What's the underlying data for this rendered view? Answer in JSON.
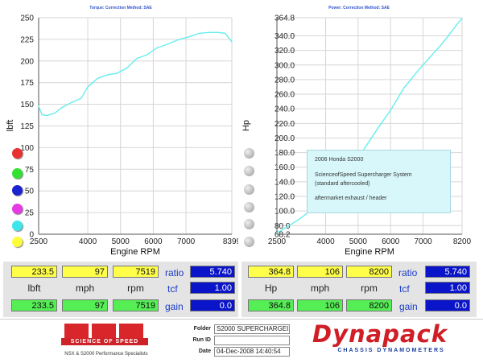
{
  "torque_chart": {
    "title": "Torque:     Correction Method: SAE",
    "ylabel": "lbft",
    "xlabel": "Engine RPM",
    "y_ticks": [
      "250",
      "225",
      "200",
      "175",
      "150",
      "125",
      "100",
      "75",
      "50",
      "25",
      "0"
    ],
    "x_ticks": [
      "2500",
      "4000",
      "5000",
      "6000",
      "7000",
      "8399"
    ]
  },
  "power_chart": {
    "title": "Power:     Correction Method: SAE",
    "ylabel": "Hp",
    "xlabel": "Engine RPM",
    "y_ticks": [
      "364.8",
      "340.0",
      "320.0",
      "300.0",
      "280.0",
      "260.0",
      "240.0",
      "220.0",
      "200.0",
      "180.0",
      "160.0",
      "140.0",
      "120.0",
      "100.0",
      "80.0",
      "68.2"
    ],
    "x_ticks": [
      "2500",
      "4000",
      "5000",
      "6000",
      "7000",
      "8200"
    ]
  },
  "chart_data": [
    {
      "type": "line",
      "title": "Torque:     Correction Method: SAE",
      "xlabel": "Engine RPM",
      "ylabel": "lbft",
      "xlim": [
        2500,
        8399
      ],
      "ylim": [
        0,
        250
      ],
      "grid": true,
      "series": [
        {
          "color": "#66eeee",
          "x": [
            2500,
            2600,
            2750,
            3000,
            3200,
            3500,
            3800,
            4000,
            4300,
            4600,
            4900,
            5200,
            5500,
            5800,
            6100,
            6400,
            6800,
            7100,
            7400,
            7700,
            8000,
            8200,
            8399
          ],
          "y": [
            148,
            138,
            137,
            140,
            146,
            152,
            157,
            170,
            180,
            184,
            186,
            192,
            203,
            207,
            215,
            219,
            225,
            228,
            232,
            233,
            233,
            232,
            222
          ]
        }
      ]
    },
    {
      "type": "line",
      "title": "Power:     Correction Method: SAE",
      "xlabel": "Engine RPM",
      "ylabel": "Hp",
      "xlim": [
        2500,
        8200
      ],
      "ylim": [
        68.2,
        364.8
      ],
      "grid": true,
      "series": [
        {
          "color": "#66eeee",
          "x": [
            2500,
            2800,
            3200,
            3600,
            4000,
            4400,
            4800,
            5200,
            5600,
            6000,
            6400,
            6800,
            7200,
            7600,
            8000,
            8200
          ],
          "y": [
            70,
            78,
            89,
            103,
            117,
            135,
            158,
            186,
            213,
            238,
            268,
            290,
            310,
            330,
            353,
            364
          ]
        }
      ]
    }
  ],
  "legend_dots_left": [
    {
      "color": "#e83030"
    },
    {
      "color": "#34e034"
    },
    {
      "color": "#1a22d0"
    },
    {
      "color": "#e43be4"
    },
    {
      "color": "#3ee6ea"
    },
    {
      "color": "#fdfd3c"
    }
  ],
  "info_box": {
    "line1": "2006 Honda S2000",
    "line2": "ScienceofSpeed Supercharger System",
    "line3": "(standard aftercooled)",
    "line4": "aftermarket exhaust / header"
  },
  "readout_left": {
    "top": [
      "233.5",
      "97",
      "7519"
    ],
    "units": [
      "lbft",
      "mph",
      "rpm"
    ],
    "bottom": [
      "233.5",
      "97",
      "7519"
    ],
    "ratio_label": "ratio",
    "ratio_value": "5.740",
    "tcf_label": "tcf",
    "tcf_value": "1.00",
    "gain_label": "gain",
    "gain_value": "0.0"
  },
  "readout_right": {
    "top": [
      "364.8",
      "106",
      "8200"
    ],
    "units": [
      "Hp",
      "mph",
      "rpm"
    ],
    "bottom": [
      "364.8",
      "106",
      "8200"
    ],
    "ratio_label": "ratio",
    "ratio_value": "5.740",
    "tcf_label": "tcf",
    "tcf_value": "1.00",
    "gain_label": "gain",
    "gain_value": "0.0"
  },
  "footer": {
    "sponsor_logo_text": "SCIENCE OF SPEED",
    "sponsor_tagline": "NSX & S2000 Performance Specialists",
    "folder_label": "Folder",
    "folder_value": "S2000 SUPERCHARGEI",
    "runid_label": "Run ID",
    "runid_value": "",
    "date_label": "Date",
    "date_value": "04-Dec-2008   14:40:54",
    "brand_logo_text": "Dynapack",
    "brand_subtitle": "CHASSIS DYNAMOMETERS"
  }
}
